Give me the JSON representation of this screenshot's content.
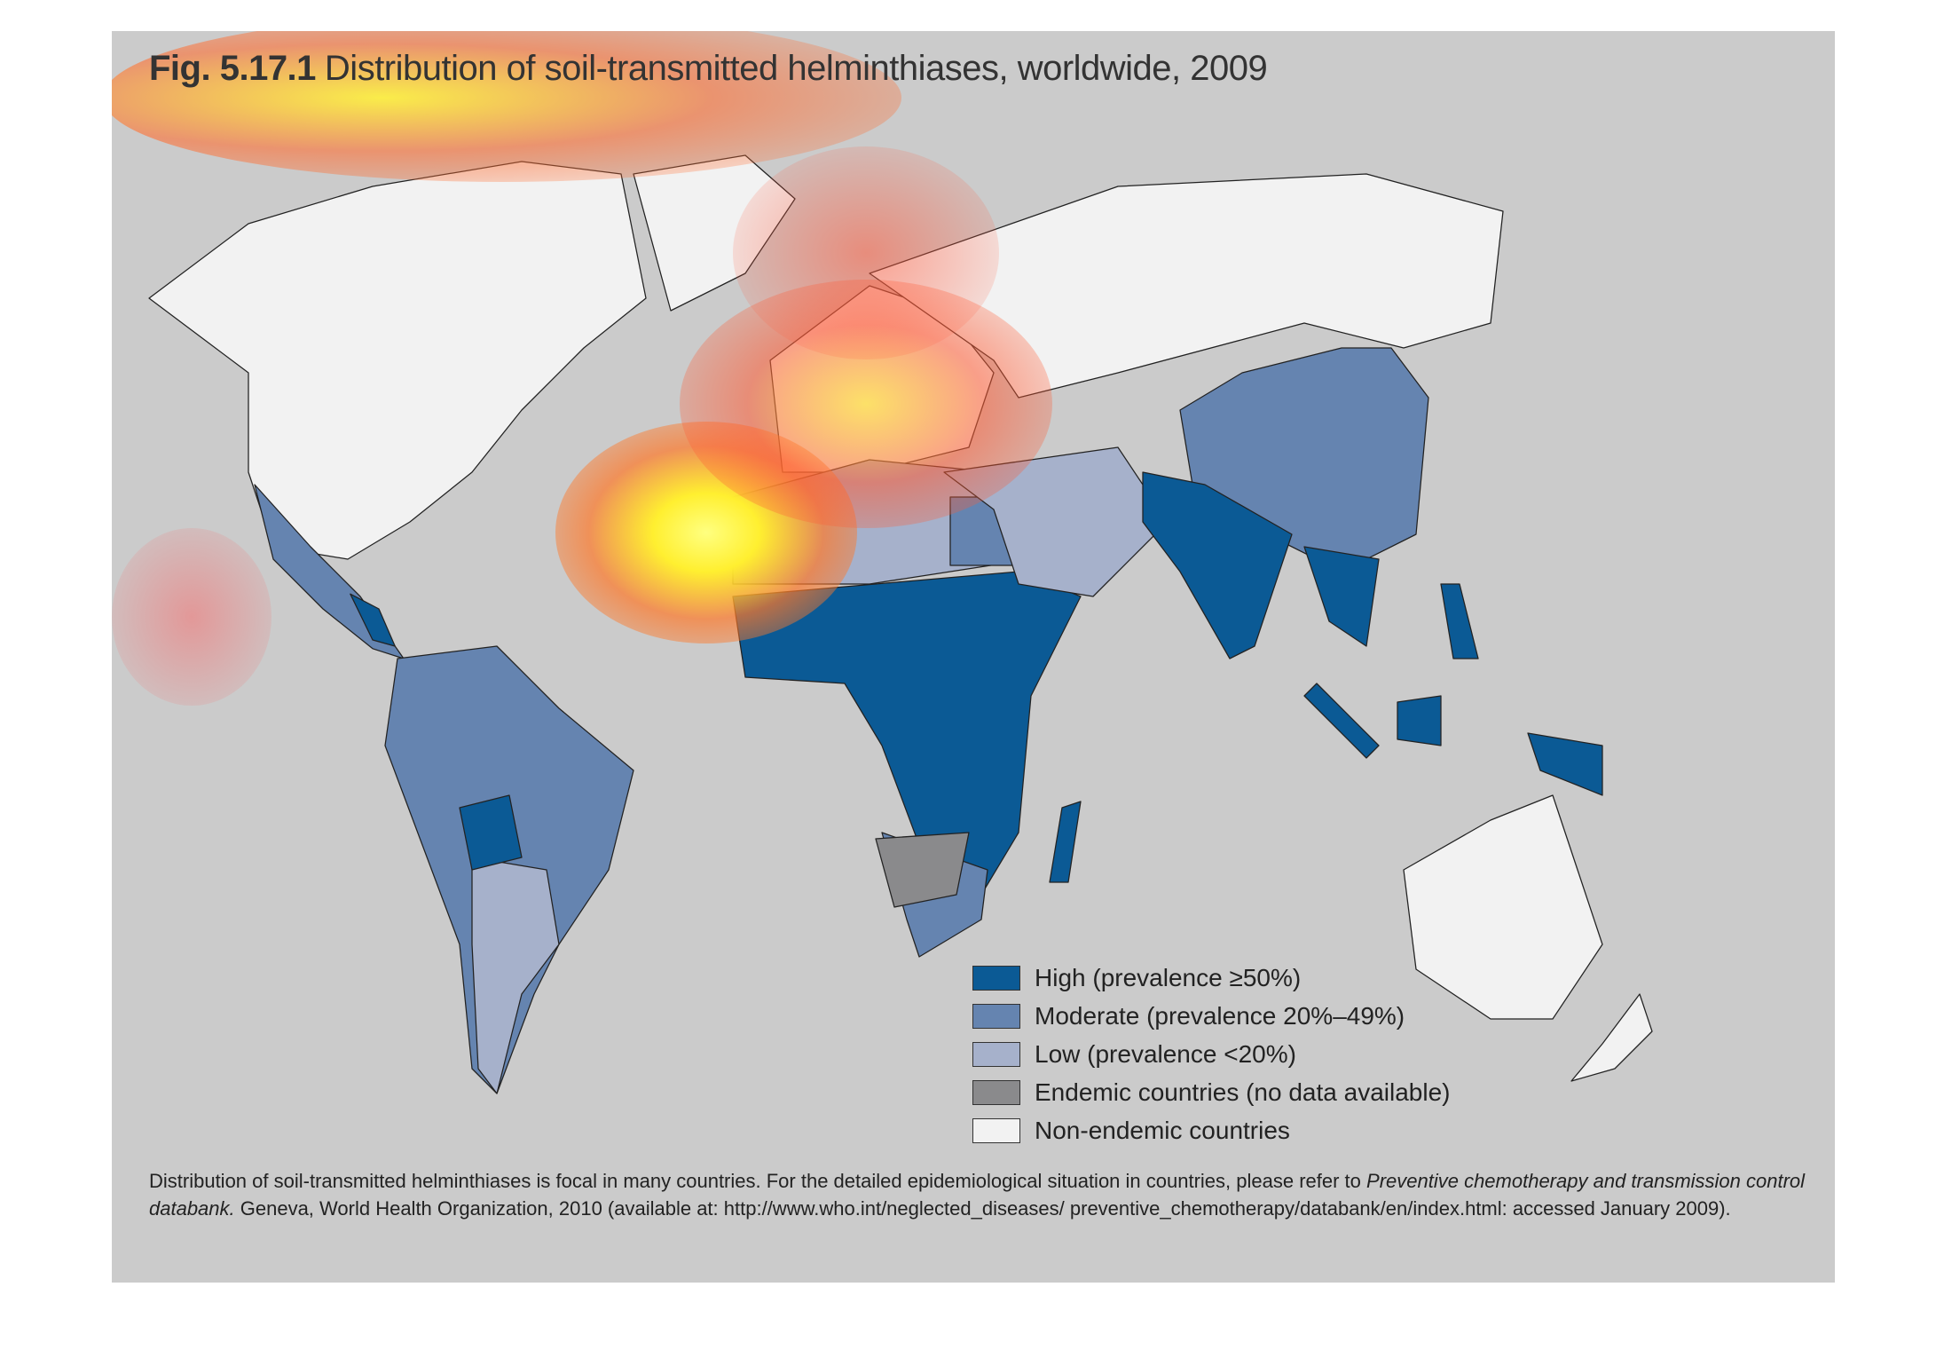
{
  "title": {
    "figure": "Fig. 5.17.1",
    "text": "Distribution of soil-transmitted helminthiases, worldwide, 2009"
  },
  "legend": [
    {
      "label": "High (prevalence ≥50%)",
      "color": "#0b5a95"
    },
    {
      "label": "Moderate (prevalence 20%–49%)",
      "color": "#6584b0"
    },
    {
      "label": "Low (prevalence <20%)",
      "color": "#a6b1cb"
    },
    {
      "label": "Endemic countries (no data available)",
      "color": "#8a8a8c"
    },
    {
      "label": "Non-endemic countries",
      "color": "#f2f2f2"
    }
  ],
  "footnote": {
    "before": "Distribution of soil-transmitted helminthiases is focal in many countries. For the detailed epidemiological situation in countries, please refer to ",
    "italic": "Preventive chemotherapy and transmission control databank.",
    "after": " Geneva, World Health Organization, 2010 (available at: http://www.who.int/neglected_diseases/ preventive_chemotherapy/databank/en/index.html: accessed January 2009)."
  }
}
